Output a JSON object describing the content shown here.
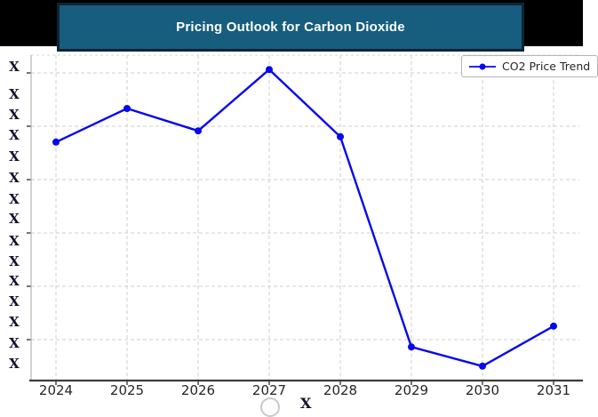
{
  "banner": {
    "title": "Pricing Outlook for Carbon Dioxide",
    "bg_color": "#175d7e",
    "border_color": "#0e2433",
    "text_color": "#ffffff",
    "backdrop_color": "#000000"
  },
  "legend": {
    "label": "CO2 Price Trend"
  },
  "axes": {
    "x_tick_labels": [
      "2024",
      "2025",
      "2026",
      "2027",
      "2028",
      "2029",
      "2030",
      "2031"
    ],
    "y_tick_labels": [
      "X",
      "X",
      "X",
      "X",
      "X",
      "X",
      "X",
      "X",
      "X",
      "X",
      "X",
      "X",
      "X",
      "X",
      "X"
    ],
    "x_axis_title_partial": "X"
  },
  "colors": {
    "line": "#0707f0",
    "grid": "#cfcfcf",
    "axis_dark": "#3c3c3c",
    "axis_light": "#b3b3b3",
    "tick_label": "#262626",
    "y_label": "#10102a"
  },
  "chart_data": {
    "type": "line",
    "title": "Pricing Outlook for Carbon Dioxide",
    "categories": [
      "2024",
      "2025",
      "2026",
      "2027",
      "2028",
      "2029",
      "2030",
      "2031"
    ],
    "series": [
      {
        "name": "CO2 Price Trend",
        "color": "#0707f0",
        "marker": "circle",
        "values": [
          4.47,
          5.1,
          4.68,
          5.83,
          4.57,
          0.63,
          0.27,
          1.02
        ]
      }
    ],
    "y_axis": {
      "tick_labels_redacted_as": "X",
      "units": "gridline units (numeric y labels redacted in source image)",
      "ylim": [
        0,
        6.1
      ]
    },
    "x_axis_title": "X",
    "grid": "dashed-both-axes",
    "legend_position": "upper-right"
  }
}
